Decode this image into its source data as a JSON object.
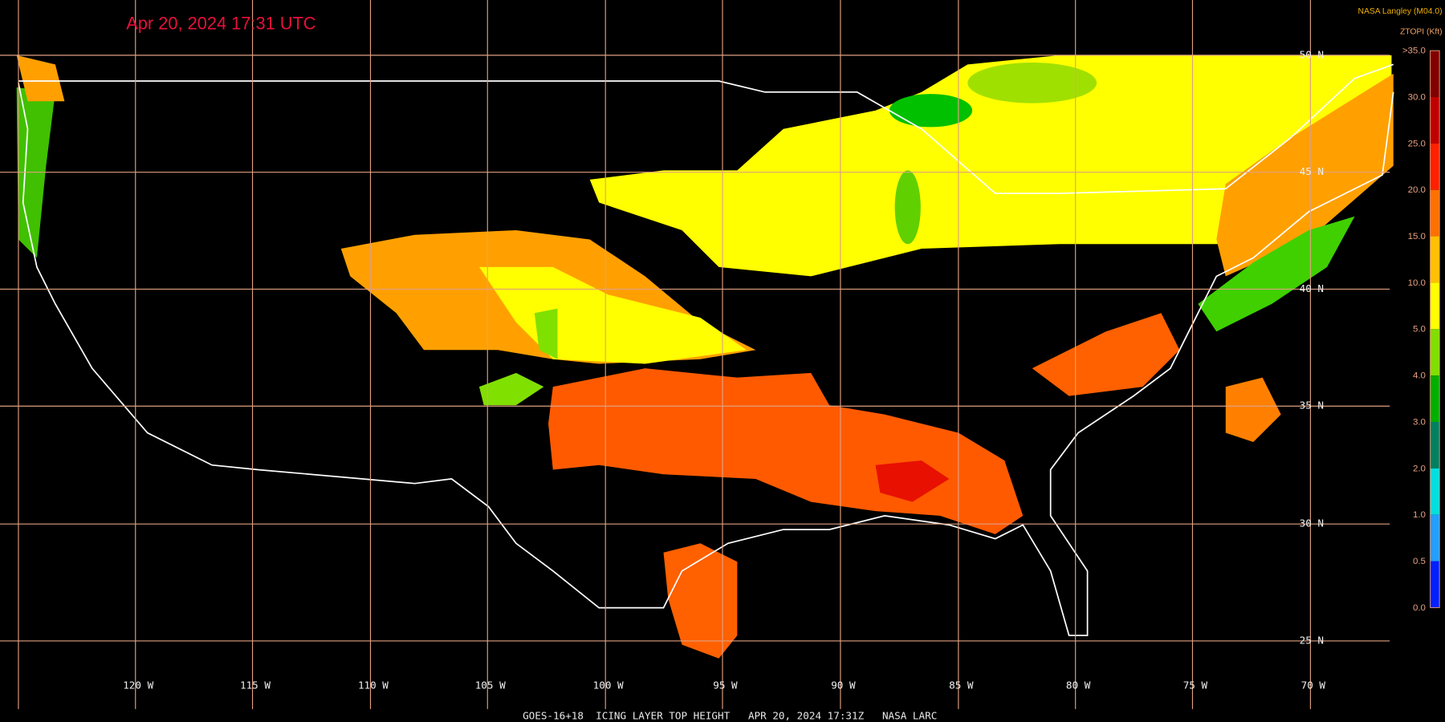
{
  "header": {
    "timestamp": "Apr 20, 2024 17:31 UTC",
    "credit": "NASA Langley (M04.0)",
    "variable": "ZTOPI (Kft)"
  },
  "colorbar": {
    "labels": [
      ">35.0",
      "30.0",
      "25.0",
      "20.0",
      "15.0",
      "10.0",
      "5.0",
      "4.0",
      "3.0",
      "2.0",
      "1.0",
      "0.5",
      "0.0"
    ]
  },
  "longitude_labels": [
    "120 W",
    "115 W",
    "110 W",
    "105 W",
    "100 W",
    "95 W",
    "90 W",
    "85 W",
    "80 W",
    "75 W",
    "70 W"
  ],
  "latitude_labels": [
    "50 N",
    "45 N",
    "40 N",
    "35 N",
    "30 N",
    "25 N"
  ],
  "footer": "GOES-16+18  ICING LAYER TOP HEIGHT   APR 20, 2024 17:31Z   NASA LARC"
}
